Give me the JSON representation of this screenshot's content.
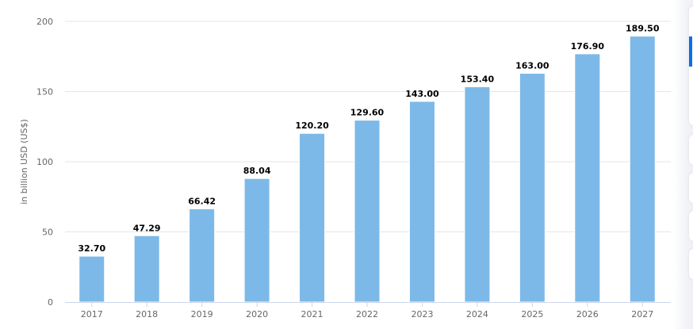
{
  "chart_data": {
    "type": "bar",
    "title": "",
    "xlabel": "",
    "ylabel": "in billion USD (US$)",
    "ylim": [
      0,
      200
    ],
    "yticks": [
      0,
      50,
      100,
      150,
      200
    ],
    "grid": true,
    "legend": null,
    "categories": [
      "2017",
      "2018",
      "2019",
      "2020",
      "2021",
      "2022",
      "2023",
      "2024",
      "2025",
      "2026",
      "2027"
    ],
    "values": [
      32.7,
      47.29,
      66.42,
      88.04,
      120.2,
      129.6,
      143.0,
      153.4,
      163.0,
      176.9,
      189.5
    ],
    "value_labels": [
      "32.70",
      "47.29",
      "66.42",
      "88.04",
      "120.20",
      "129.60",
      "143.00",
      "153.40",
      "163.00",
      "176.90",
      "189.50"
    ],
    "colors": {
      "bar": "#7cb9e8",
      "grid": "#e6e6e6",
      "axis": "#ccd6eb",
      "tick_label": "#666666",
      "value_label": "#000000"
    }
  },
  "sidebar": {
    "accent_color": "#0b6ee8",
    "cards": 5
  }
}
